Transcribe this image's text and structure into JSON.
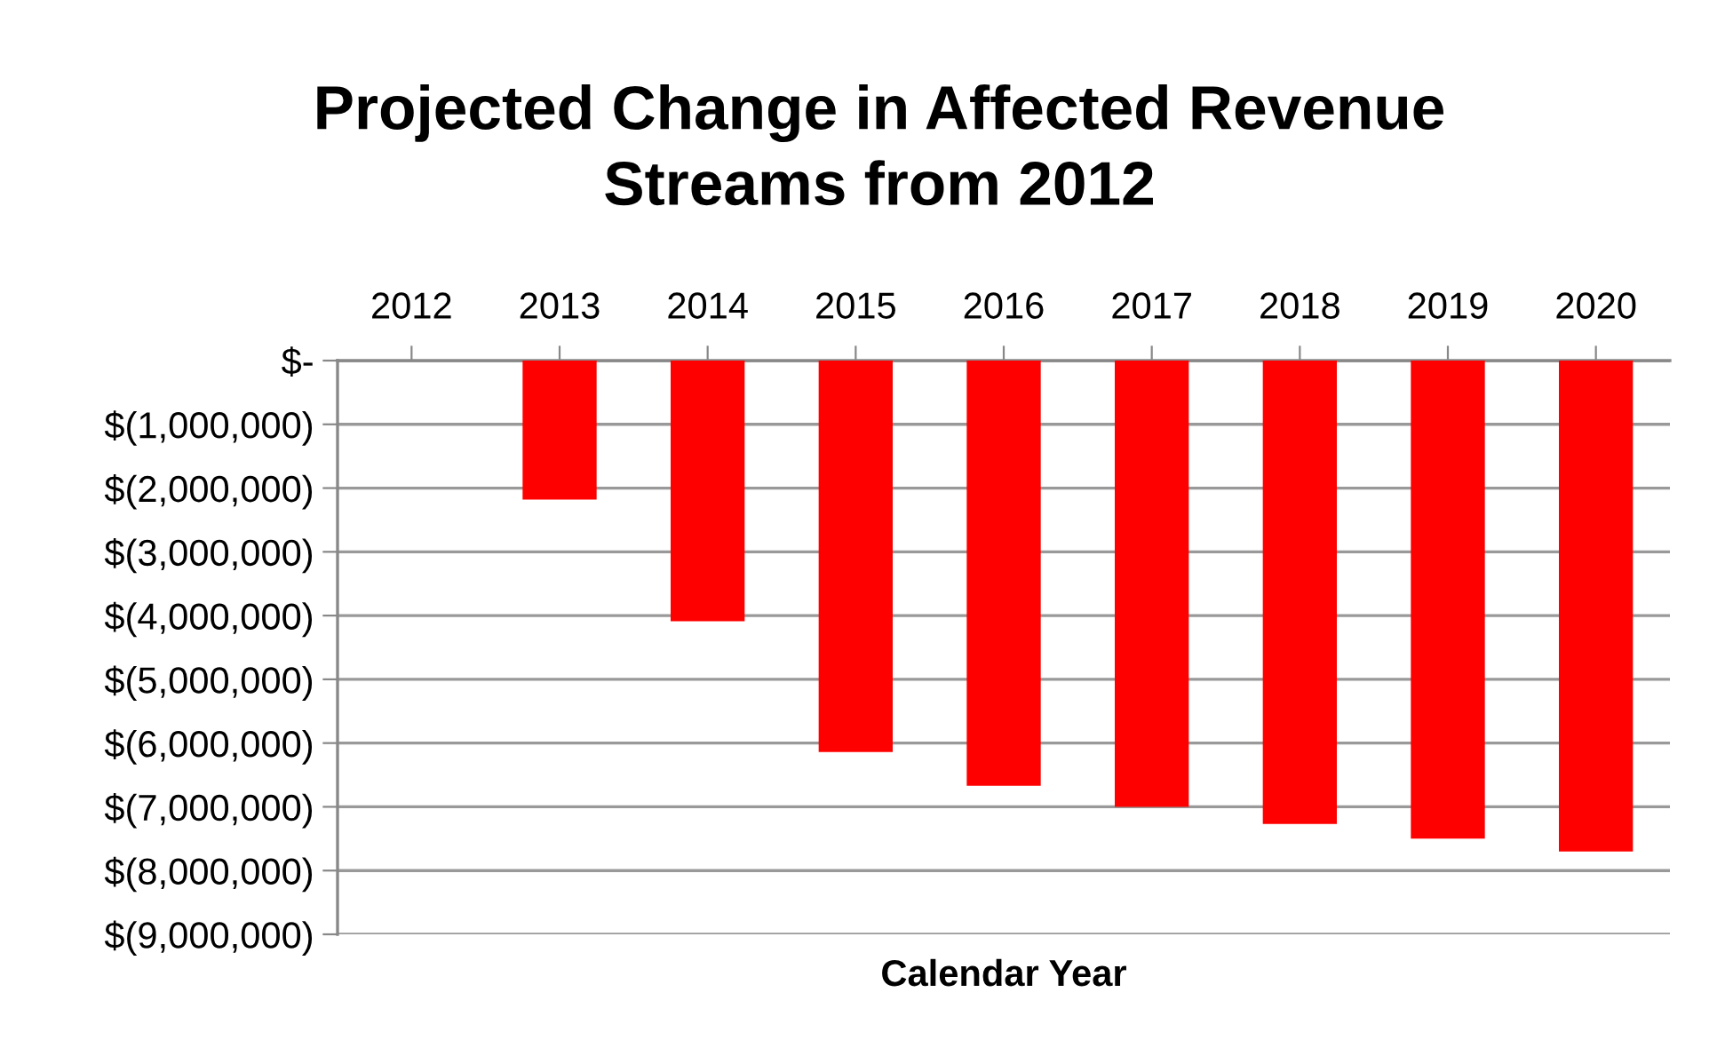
{
  "chart_data": {
    "type": "bar",
    "title": "Projected Change in Affected Revenue\nStreams from 2012",
    "xlabel": "Calendar Year",
    "categories": [
      "2012",
      "2013",
      "2014",
      "2015",
      "2016",
      "2017",
      "2018",
      "2019",
      "2020"
    ],
    "values": [
      0,
      -2180000,
      -4090000,
      -6140000,
      -6670000,
      -7000000,
      -7270000,
      -7500000,
      -7700000
    ],
    "color": "#ff0000",
    "ylim": [
      -9000000,
      0
    ],
    "yticks": [
      {
        "value": 0,
        "label": "$-"
      },
      {
        "value": -1000000,
        "label": "$(1,000,000)"
      },
      {
        "value": -2000000,
        "label": "$(2,000,000)"
      },
      {
        "value": -3000000,
        "label": "$(3,000,000)"
      },
      {
        "value": -4000000,
        "label": "$(4,000,000)"
      },
      {
        "value": -5000000,
        "label": "$(5,000,000)"
      },
      {
        "value": -6000000,
        "label": "$(6,000,000)"
      },
      {
        "value": -7000000,
        "label": "$(7,000,000)"
      },
      {
        "value": -8000000,
        "label": "$(8,000,000)"
      },
      {
        "value": -9000000,
        "label": "$(9,000,000)"
      }
    ],
    "grid": "y"
  }
}
